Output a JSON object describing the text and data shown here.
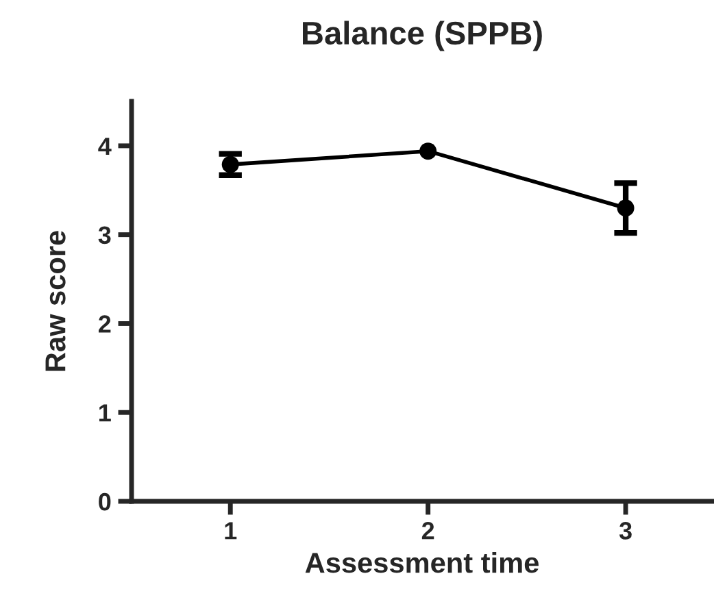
{
  "chart_data": {
    "type": "line",
    "title": "Balance (SPPB)",
    "xlabel": "Assessment time",
    "ylabel": "Raw score",
    "x": [
      1,
      2,
      3
    ],
    "series": [
      {
        "color": "#000000",
        "values": [
          3.79,
          3.94,
          3.3
        ],
        "errors": [
          0.12,
          null,
          0.28
        ]
      }
    ],
    "xlim": [
      0.5,
      3.44
    ],
    "xticks": [
      1,
      2,
      3
    ],
    "ylim": [
      0,
      4.5
    ],
    "yticks": [
      0,
      1,
      2,
      3,
      4
    ],
    "marker": "circle",
    "line_style": "solid"
  }
}
